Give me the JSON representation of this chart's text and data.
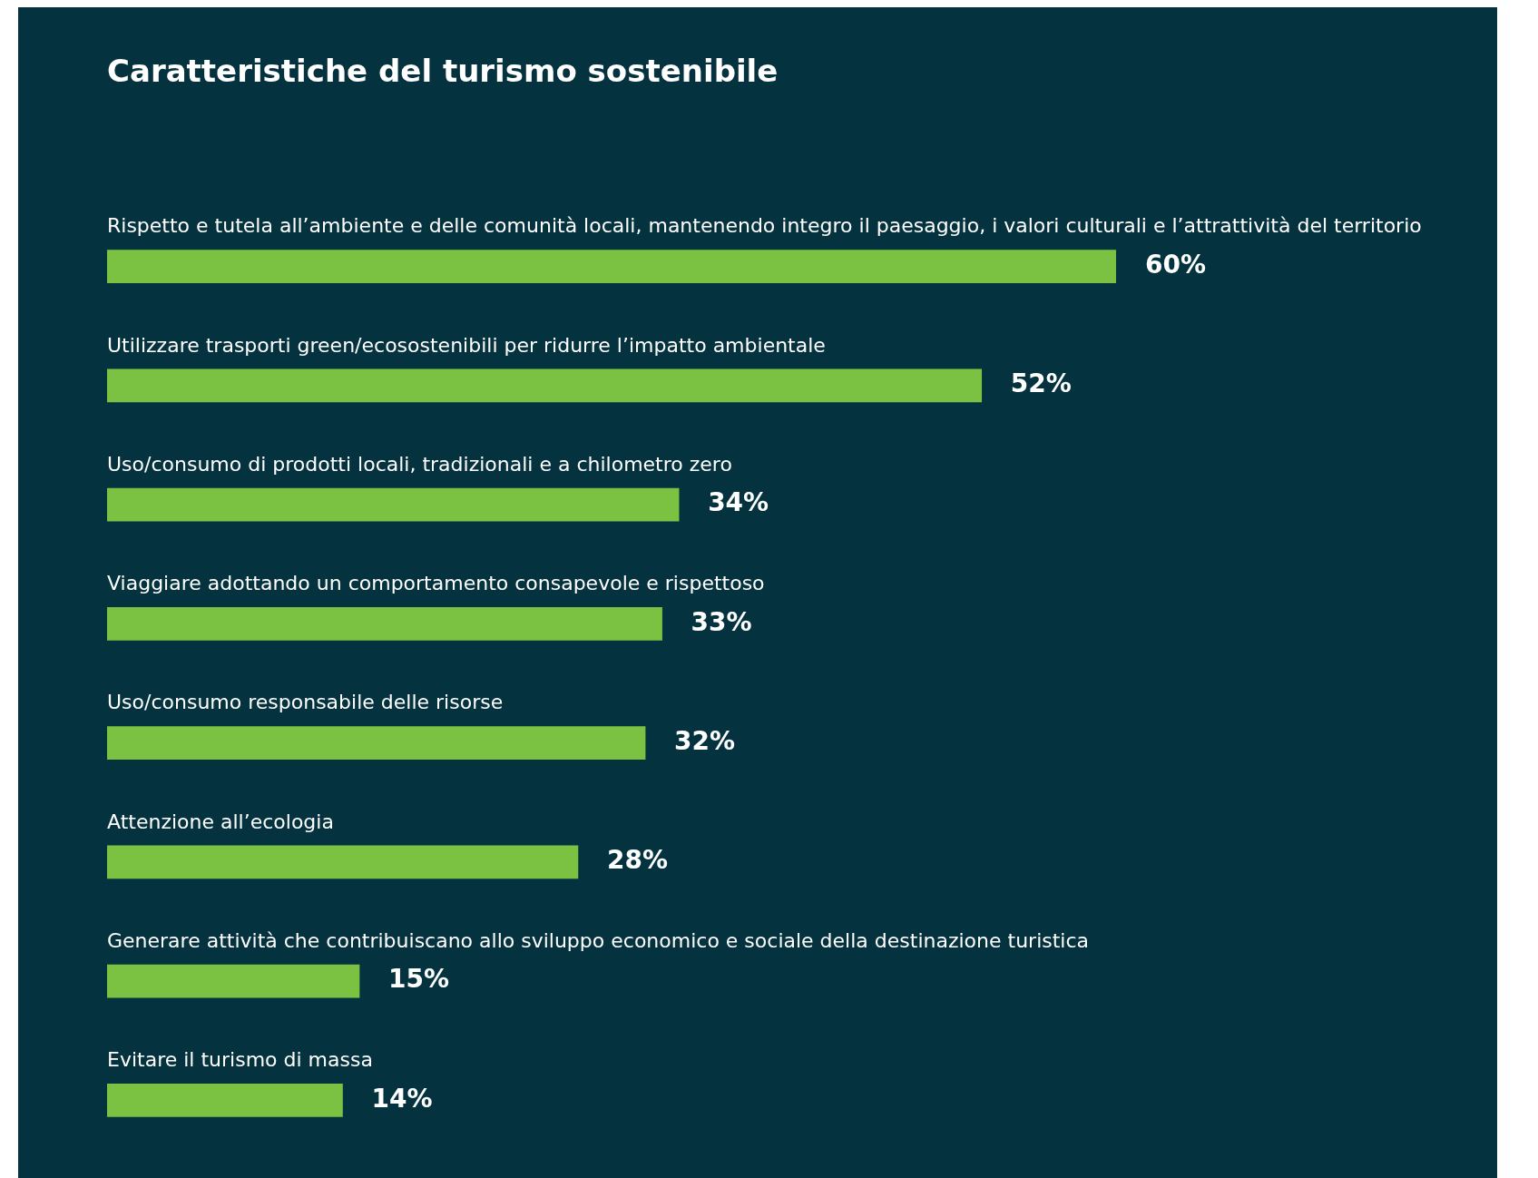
{
  "chart_data": {
    "type": "bar",
    "orientation": "horizontal",
    "title": "Caratteristiche del turismo sostenibile",
    "categories": [
      "Rispetto e tutela all’ambiente e delle comunità locali, mantenendo integro il paesaggio, i valori culturali e l’attrattività del territorio",
      "Utilizzare trasporti green/ecosostenibili per ridurre l’impatto ambientale",
      "Uso/consumo di prodotti locali, tradizionali e a chilometro zero",
      "Viaggiare adottando un comportamento consapevole e rispettoso",
      "Uso/consumo responsabile delle risorse",
      "Attenzione all’ecologia",
      "Generare attività che contribuiscano allo sviluppo economico e sociale della destinazione turistica",
      "Evitare il turismo di massa"
    ],
    "values": [
      60,
      52,
      34,
      33,
      32,
      28,
      15,
      14
    ],
    "value_labels": [
      "60%",
      "52%",
      "34%",
      "33%",
      "32%",
      "28%",
      "15%",
      "14%"
    ],
    "color": "#7cc242"
  }
}
